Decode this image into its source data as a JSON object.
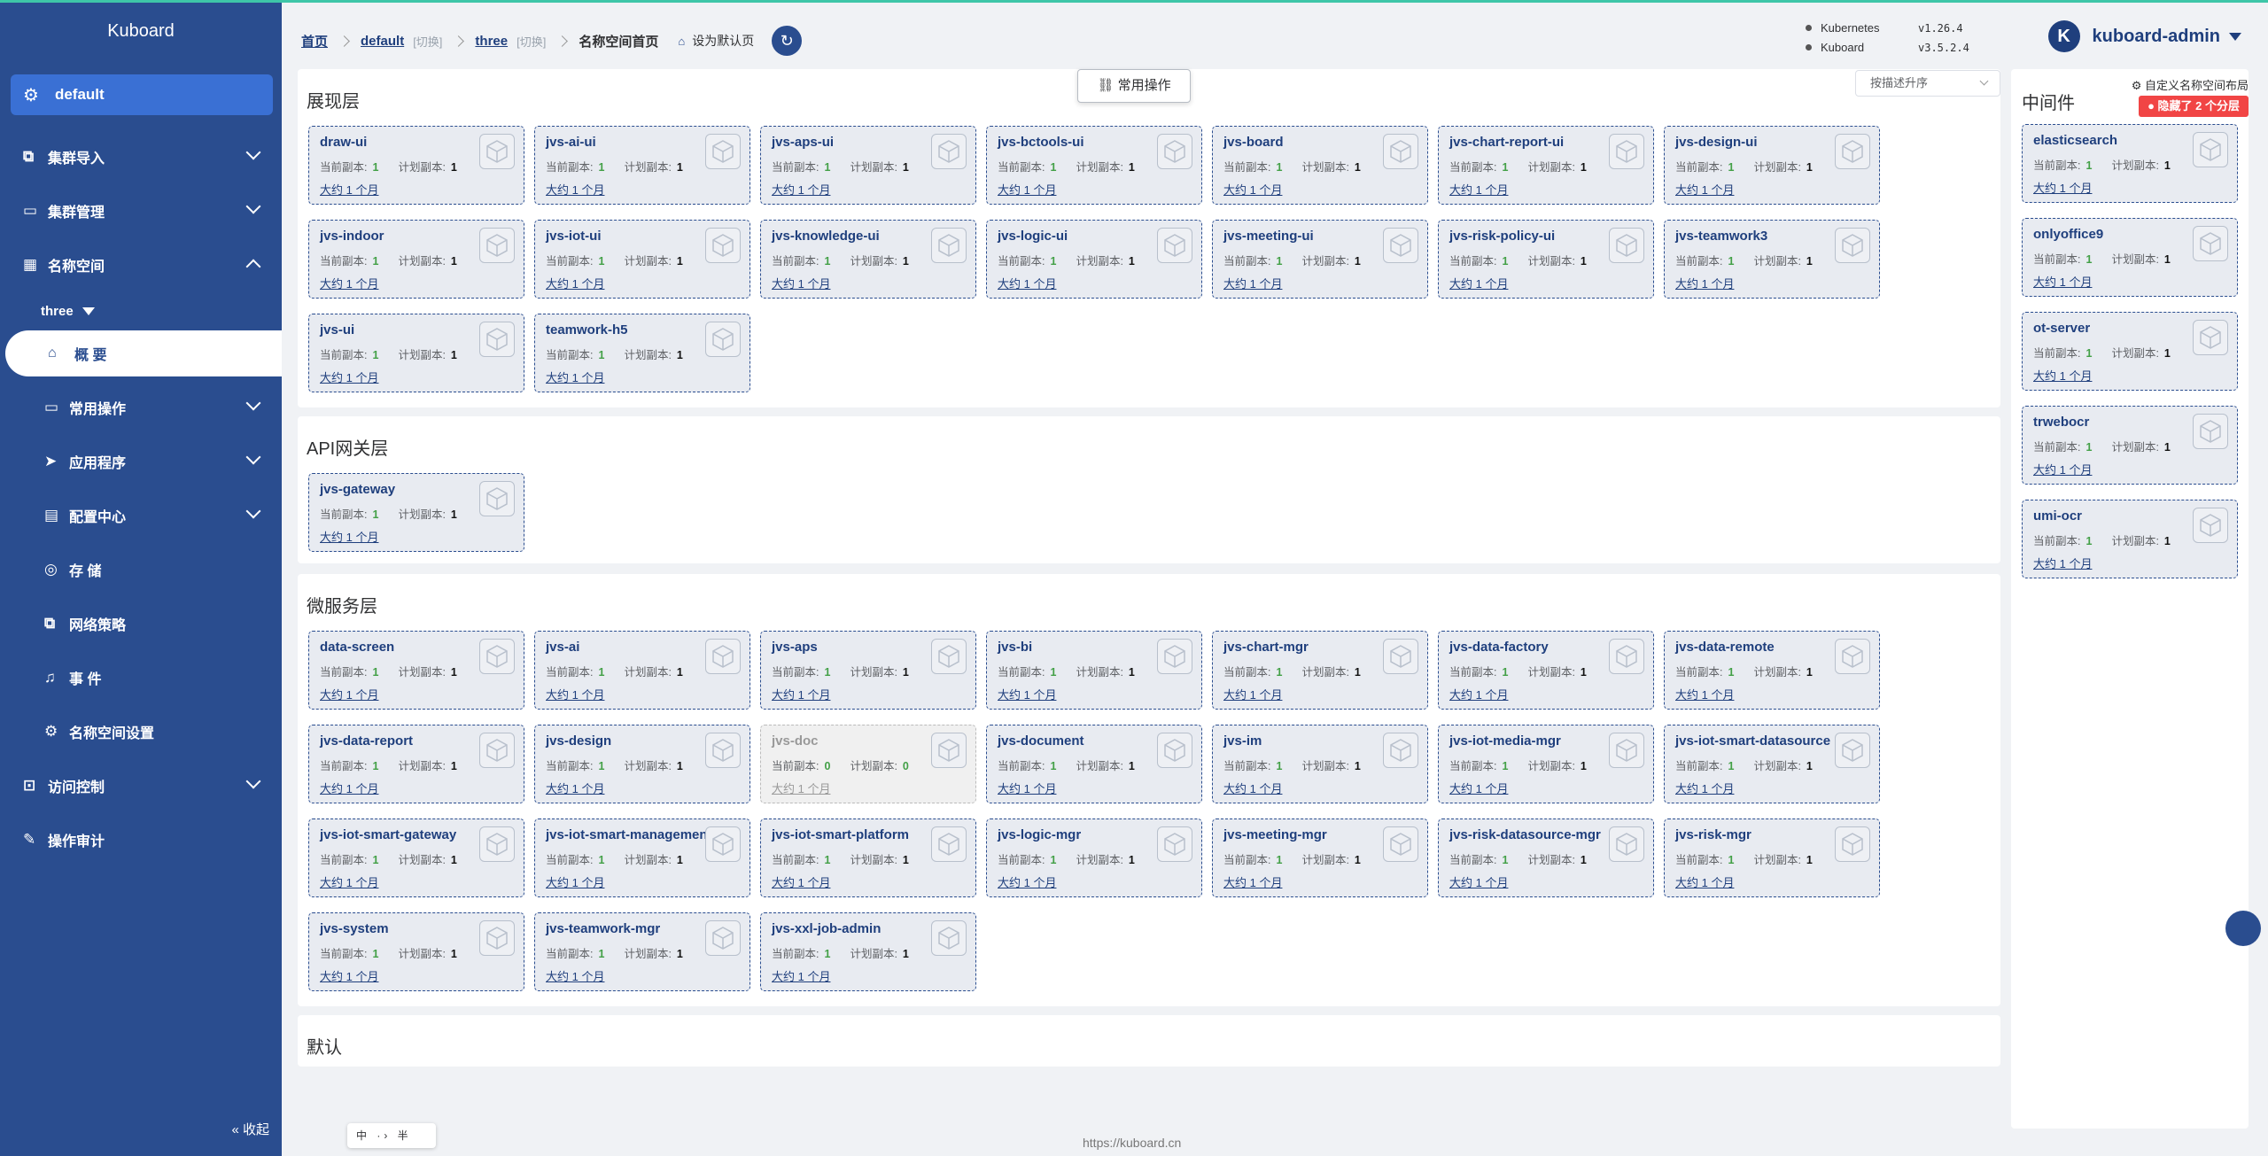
{
  "app": {
    "brand": "Kuboard"
  },
  "sidebar": {
    "namespace_pill": "default",
    "menu": [
      {
        "label": "集群导入",
        "icon": "import-icon"
      },
      {
        "label": "集群管理",
        "icon": "cluster-icon"
      },
      {
        "label": "名称空间",
        "icon": "grid-icon"
      }
    ],
    "ns_select": "three",
    "active": "概 要",
    "submenu": [
      {
        "label": "常用操作",
        "icon": "folder-icon",
        "chevron": true
      },
      {
        "label": "应用程序",
        "icon": "send-icon",
        "chevron": true
      },
      {
        "label": "配置中心",
        "icon": "briefcase-icon",
        "chevron": true
      },
      {
        "label": "存 储",
        "icon": "database-icon",
        "chevron": false
      },
      {
        "label": "网络策略",
        "icon": "network-icon",
        "chevron": false
      },
      {
        "label": "事 件",
        "icon": "bell-icon",
        "chevron": false
      },
      {
        "label": "名称空间设置",
        "icon": "gear-icon",
        "chevron": false
      }
    ],
    "bottom_menu": [
      {
        "label": "访问控制",
        "icon": "lock-icon",
        "chevron": true
      },
      {
        "label": "操作审计",
        "icon": "audit-icon",
        "chevron": false
      }
    ],
    "collapse": "« 收起"
  },
  "header": {
    "crumbs": {
      "home": "首页",
      "cluster": "default",
      "switch": "[切换]",
      "namespace": "three",
      "current": "名称空间首页",
      "set_default": "设为默认页"
    },
    "versions": [
      {
        "name": "Kubernetes",
        "value": "v1.26.4"
      },
      {
        "name": "Kuboard",
        "value": "v3.5.2.4"
      }
    ],
    "user": {
      "initial": "K",
      "name": "kuboard-admin"
    }
  },
  "common_ops": "常用操作",
  "sort_select": "按描述升序",
  "labels": {
    "current": "当前副本:",
    "planned": "计划副本:",
    "age": "大约 1 个月"
  },
  "sections": [
    {
      "title": "展现层",
      "cards": [
        {
          "name": "draw-ui",
          "cur": "1",
          "plan": "1"
        },
        {
          "name": "jvs-ai-ui",
          "cur": "1",
          "plan": "1"
        },
        {
          "name": "jvs-aps-ui",
          "cur": "1",
          "plan": "1"
        },
        {
          "name": "jvs-bctools-ui",
          "cur": "1",
          "plan": "1"
        },
        {
          "name": "jvs-board",
          "cur": "1",
          "plan": "1"
        },
        {
          "name": "jvs-chart-report-ui",
          "cur": "1",
          "plan": "1"
        },
        {
          "name": "jvs-design-ui",
          "cur": "1",
          "plan": "1"
        },
        {
          "name": "jvs-indoor",
          "cur": "1",
          "plan": "1"
        },
        {
          "name": "jvs-iot-ui",
          "cur": "1",
          "plan": "1"
        },
        {
          "name": "jvs-knowledge-ui",
          "cur": "1",
          "plan": "1"
        },
        {
          "name": "jvs-logic-ui",
          "cur": "1",
          "plan": "1"
        },
        {
          "name": "jvs-meeting-ui",
          "cur": "1",
          "plan": "1"
        },
        {
          "name": "jvs-risk-policy-ui",
          "cur": "1",
          "plan": "1"
        },
        {
          "name": "jvs-teamwork3",
          "cur": "1",
          "plan": "1"
        },
        {
          "name": "jvs-ui",
          "cur": "1",
          "plan": "1"
        },
        {
          "name": "teamwork-h5",
          "cur": "1",
          "plan": "1"
        }
      ]
    },
    {
      "title": "API网关层",
      "cards": [
        {
          "name": "jvs-gateway",
          "cur": "1",
          "plan": "1"
        }
      ]
    },
    {
      "title": "微服务层",
      "cards": [
        {
          "name": "data-screen",
          "cur": "1",
          "plan": "1"
        },
        {
          "name": "jvs-ai",
          "cur": "1",
          "plan": "1"
        },
        {
          "name": "jvs-aps",
          "cur": "1",
          "plan": "1"
        },
        {
          "name": "jvs-bi",
          "cur": "1",
          "plan": "1"
        },
        {
          "name": "jvs-chart-mgr",
          "cur": "1",
          "plan": "1"
        },
        {
          "name": "jvs-data-factory",
          "cur": "1",
          "plan": "1"
        },
        {
          "name": "jvs-data-remote",
          "cur": "1",
          "plan": "1"
        },
        {
          "name": "jvs-data-report",
          "cur": "1",
          "plan": "1"
        },
        {
          "name": "jvs-design",
          "cur": "1",
          "plan": "1"
        },
        {
          "name": "jvs-doc",
          "cur": "0",
          "plan": "0",
          "dim": true
        },
        {
          "name": "jvs-document",
          "cur": "1",
          "plan": "1"
        },
        {
          "name": "jvs-im",
          "cur": "1",
          "plan": "1"
        },
        {
          "name": "jvs-iot-media-mgr",
          "cur": "1",
          "plan": "1"
        },
        {
          "name": "jvs-iot-smart-datasource",
          "cur": "1",
          "plan": "1"
        },
        {
          "name": "jvs-iot-smart-gateway",
          "cur": "1",
          "plan": "1"
        },
        {
          "name": "jvs-iot-smart-management",
          "cur": "1",
          "plan": "1"
        },
        {
          "name": "jvs-iot-smart-platform",
          "cur": "1",
          "plan": "1"
        },
        {
          "name": "jvs-logic-mgr",
          "cur": "1",
          "plan": "1"
        },
        {
          "name": "jvs-meeting-mgr",
          "cur": "1",
          "plan": "1"
        },
        {
          "name": "jvs-risk-datasource-mgr",
          "cur": "1",
          "plan": "1"
        },
        {
          "name": "jvs-risk-mgr",
          "cur": "1",
          "plan": "1"
        },
        {
          "name": "jvs-system",
          "cur": "1",
          "plan": "1"
        },
        {
          "name": "jvs-teamwork-mgr",
          "cur": "1",
          "plan": "1"
        },
        {
          "name": "jvs-xxl-job-admin",
          "cur": "1",
          "plan": "1"
        }
      ]
    },
    {
      "title": "默认",
      "cards": []
    }
  ],
  "middleware": {
    "title": "中间件",
    "custom_layout": "自定义名称空间布局",
    "hidden_badge": "隐藏了 2 个分层",
    "cards": [
      {
        "name": "elasticsearch",
        "cur": "1",
        "plan": "1"
      },
      {
        "name": "onlyoffice9",
        "cur": "1",
        "plan": "1"
      },
      {
        "name": "ot-server",
        "cur": "1",
        "plan": "1"
      },
      {
        "name": "trwebocr",
        "cur": "1",
        "plan": "1"
      },
      {
        "name": "umi-ocr",
        "cur": "1",
        "plan": "1"
      }
    ]
  },
  "lang_bar": "中 ·› 半",
  "footer": "https://kuboard.cn"
}
